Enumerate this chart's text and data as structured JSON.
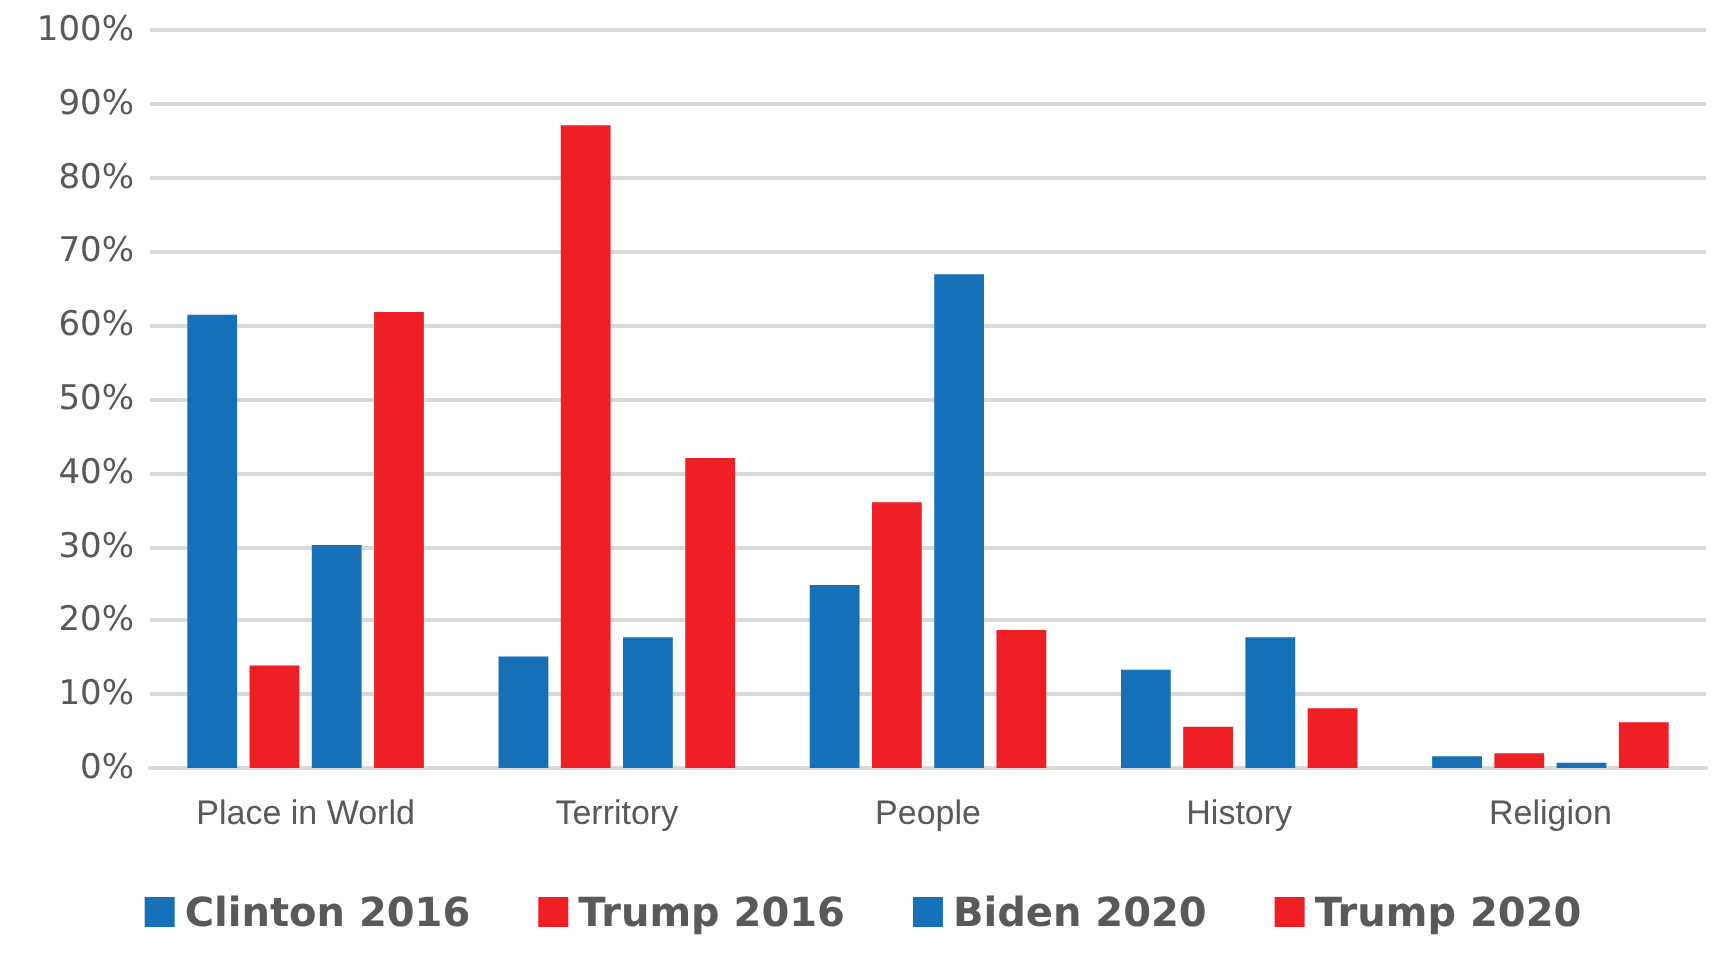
{
  "chart_data": {
    "type": "bar",
    "categories": [
      "Place in World",
      "Territory",
      "People",
      "History",
      "Religion"
    ],
    "series": [
      {
        "name": "Clinton 2016",
        "color": "#1570b8",
        "values": [
          61.4,
          15.1,
          24.8,
          13.3,
          1.6
        ]
      },
      {
        "name": "Trump 2016",
        "color": "#ee1f25",
        "values": [
          13.9,
          87.1,
          36.0,
          5.6,
          2.0
        ]
      },
      {
        "name": "Biden 2020",
        "color": "#1570b8",
        "values": [
          30.2,
          17.7,
          66.9,
          17.7,
          0.7
        ]
      },
      {
        "name": "Trump 2020",
        "color": "#ee1f25",
        "values": [
          61.8,
          42.0,
          18.7,
          8.1,
          6.2
        ]
      }
    ],
    "ylim": [
      0,
      100
    ],
    "yticks": [
      {
        "value": 0,
        "label": "0%"
      },
      {
        "value": 10,
        "label": "10%"
      },
      {
        "value": 20,
        "label": "20%"
      },
      {
        "value": 30,
        "label": "30%"
      },
      {
        "value": 40,
        "label": "40%"
      },
      {
        "value": 50,
        "label": "50%"
      },
      {
        "value": 60,
        "label": "60%"
      },
      {
        "value": 70,
        "label": "70%"
      },
      {
        "value": 80,
        "label": "80%"
      },
      {
        "value": 90,
        "label": "90%"
      },
      {
        "value": 100,
        "label": "100%"
      }
    ],
    "grid": "y",
    "legend": "bottom"
  }
}
